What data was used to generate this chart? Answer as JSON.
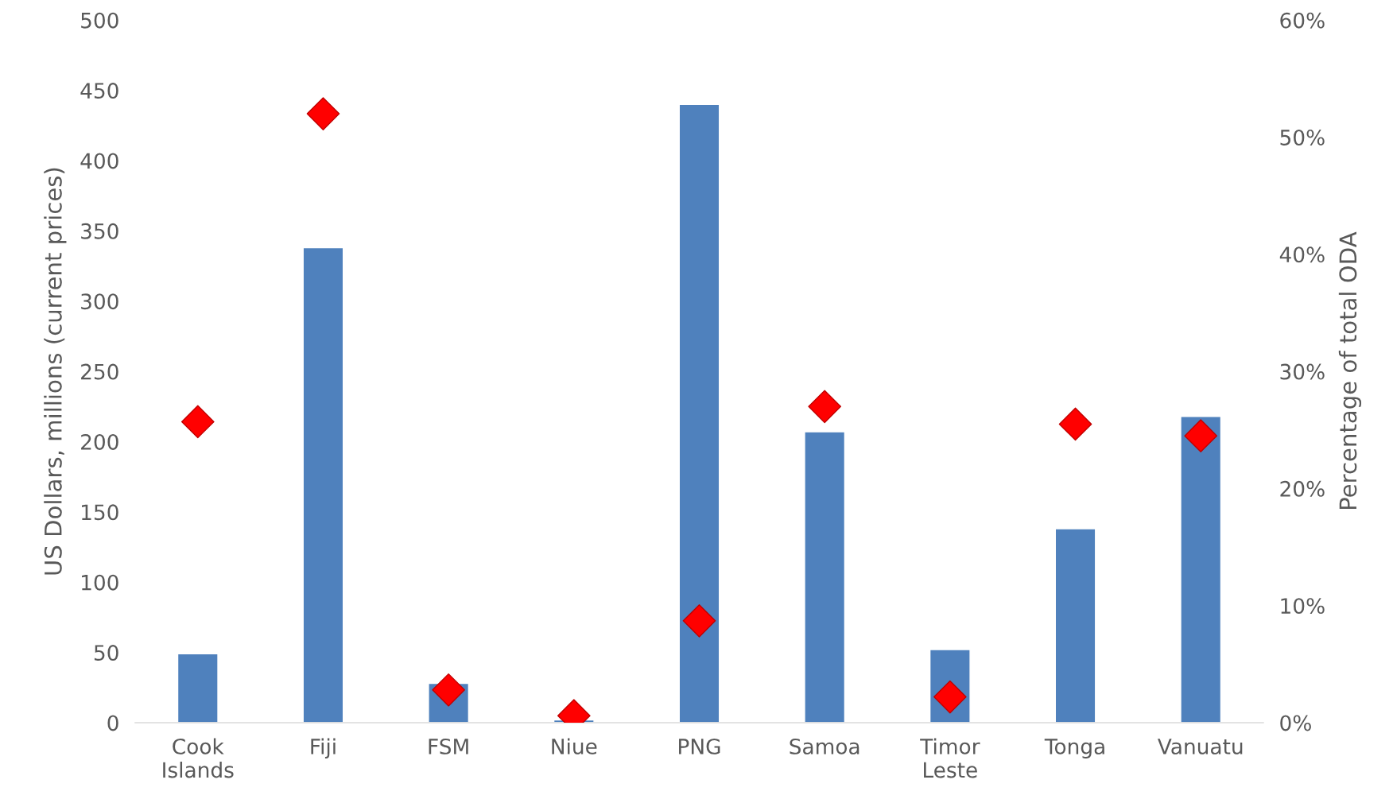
{
  "chart_data": {
    "type": "bar",
    "ylabel": "US Dollars, millions (current prices)",
    "y2label": "Percentage of total ODA",
    "categories": [
      "Cook\nIslands",
      "Fiji",
      "FSM",
      "Niue",
      "PNG",
      "Samoa",
      "Timor\nLeste",
      "Tonga",
      "Vanuatu"
    ],
    "series": [
      {
        "color": "#4f81bd",
        "values": [
          49,
          338,
          28,
          2,
          440,
          207,
          52,
          138,
          218
        ]
      },
      {
        "type": "scatter",
        "axis": "y2",
        "color": "#ff0000",
        "marker": "diamond",
        "values": [
          25.7,
          52.0,
          2.8,
          0.6,
          8.7,
          27.0,
          2.2,
          25.5,
          24.5
        ]
      }
    ],
    "ylim": [
      0,
      500
    ],
    "yticks": [
      0,
      50,
      100,
      150,
      200,
      250,
      300,
      350,
      400,
      450,
      500
    ],
    "y2lim": [
      0,
      60
    ],
    "y2ticks": [
      {
        "value": 0,
        "label": "0%"
      },
      {
        "value": 10,
        "label": "10%"
      },
      {
        "value": 20,
        "label": "20%"
      },
      {
        "value": 30,
        "label": "30%"
      },
      {
        "value": 40,
        "label": "40%"
      },
      {
        "value": 50,
        "label": "50%"
      },
      {
        "value": 60,
        "label": "60%"
      }
    ],
    "grid": false,
    "legend": false
  }
}
